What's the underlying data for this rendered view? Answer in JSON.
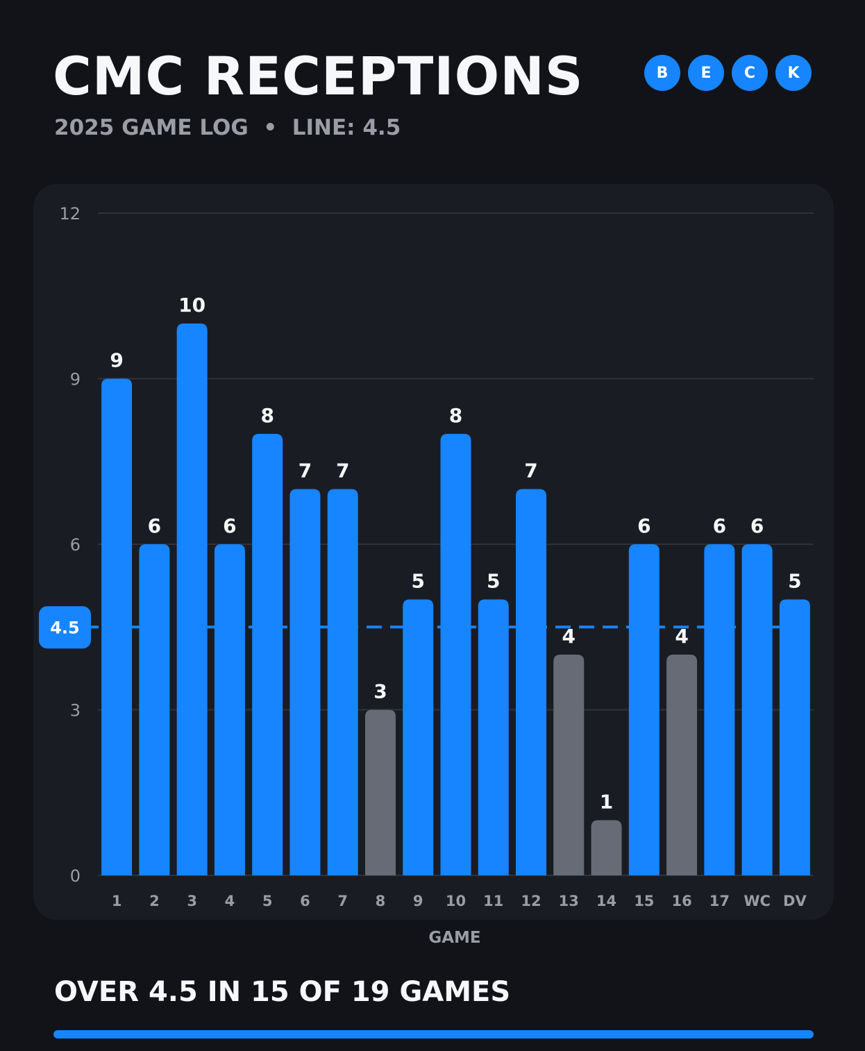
{
  "header": {
    "title": "CMC RECEPTIONS",
    "subtitle": "2025 GAME LOG  •  LINE: 4.5",
    "badges": [
      "B",
      "E",
      "C",
      "K"
    ]
  },
  "colors": {
    "background": "#121318",
    "panel": "#1a1c23",
    "accent": "#1685ff",
    "under": "#676b76",
    "muted_text": "#9a9da6",
    "grid": "#2f323b"
  },
  "chart_data": {
    "type": "bar",
    "categories": [
      "1",
      "2",
      "3",
      "4",
      "5",
      "6",
      "7",
      "8",
      "9",
      "10",
      "11",
      "12",
      "13",
      "14",
      "15",
      "16",
      "17",
      "WC",
      "DV"
    ],
    "values": [
      9,
      6,
      10,
      6,
      8,
      7,
      7,
      3,
      5,
      8,
      5,
      7,
      4,
      1,
      6,
      4,
      6,
      6,
      5
    ],
    "xlabel": "GAME",
    "ylabel": "",
    "ylim": [
      0,
      12
    ],
    "yticks": [
      0,
      3,
      6,
      9,
      12
    ],
    "reference_line": {
      "value": 4.5,
      "label": "4.5"
    },
    "data_labels": true,
    "grid": true,
    "legend": "none"
  },
  "summary": {
    "text": "OVER 4.5 IN 15 OF 19 GAMES",
    "progress": 1.0
  }
}
